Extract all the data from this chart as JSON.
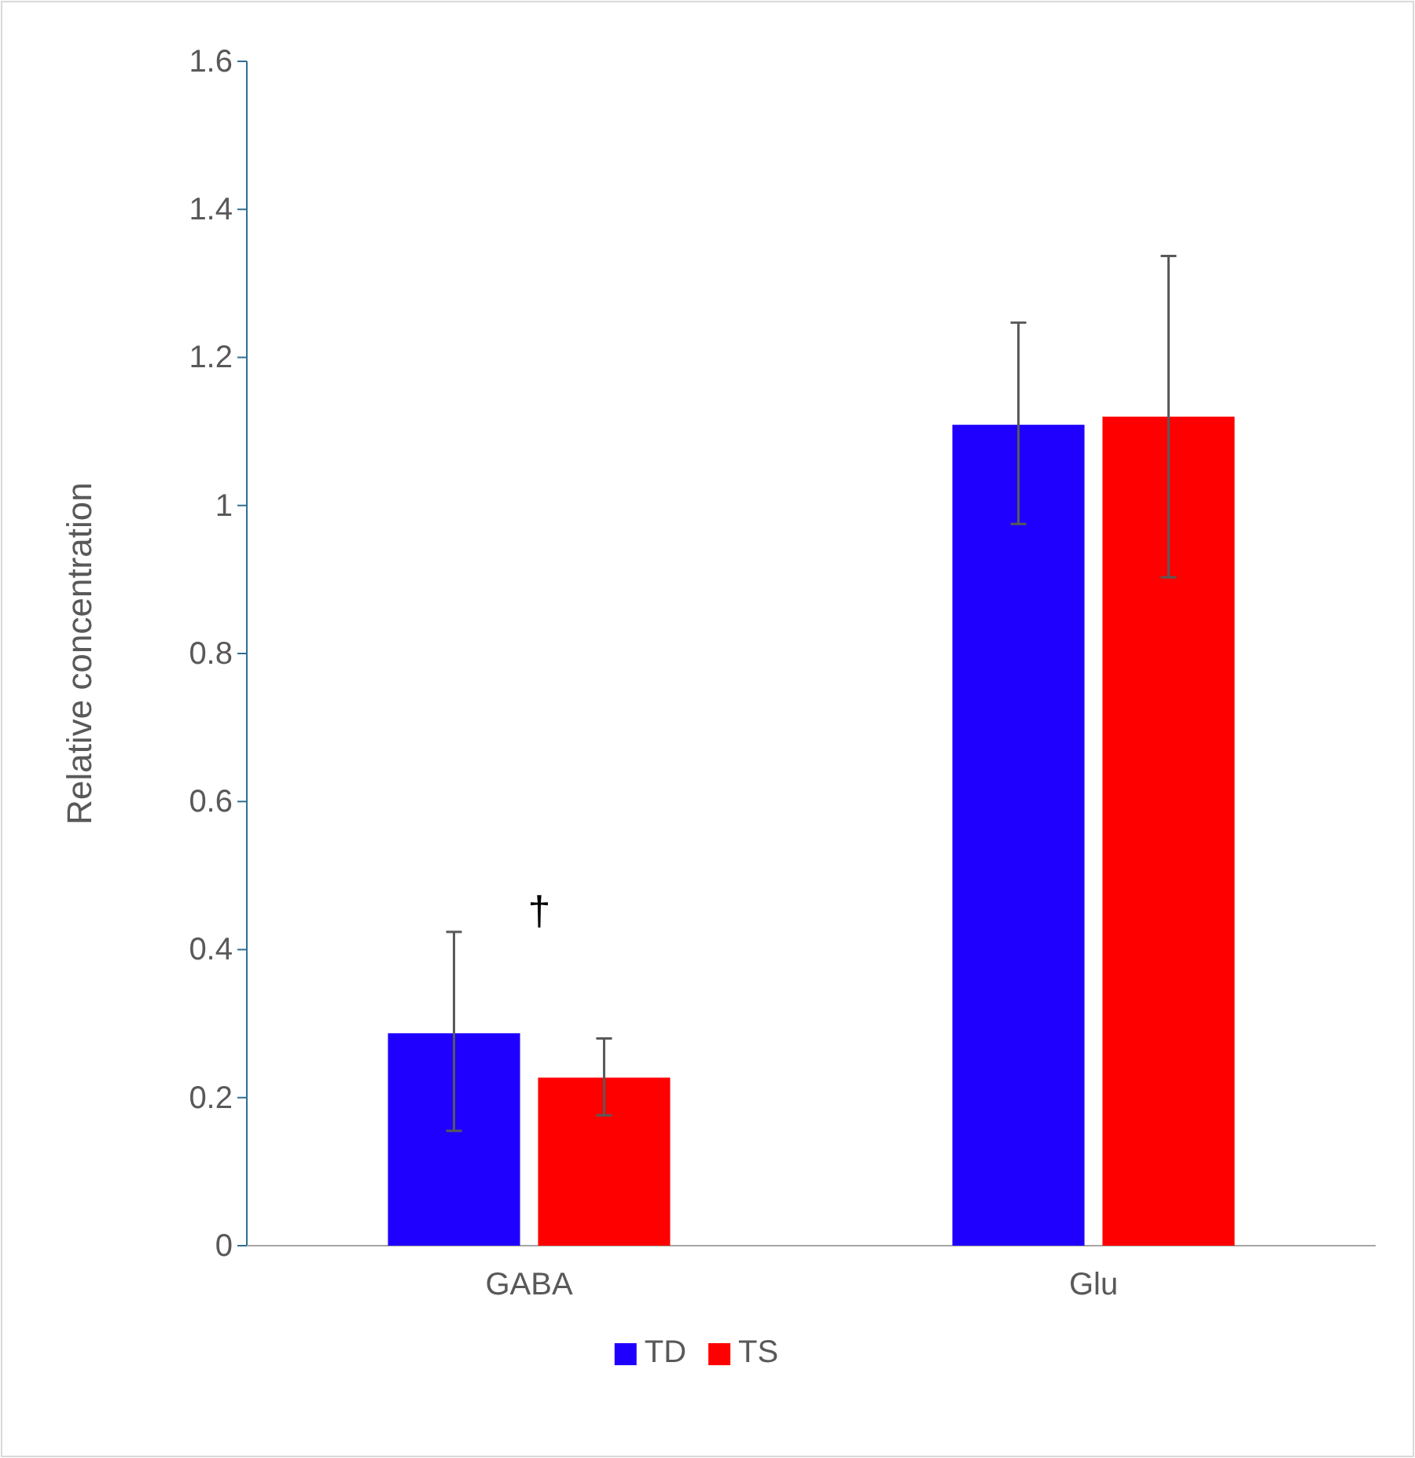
{
  "chart_data": {
    "type": "bar",
    "ylabel": "Relative concentration",
    "categories": [
      "GABA",
      "Glu"
    ],
    "series": [
      {
        "name": "TD",
        "color": "#1f00ff",
        "values": [
          0.287,
          1.109
        ],
        "errors": [
          [
            0.155,
            0.424
          ],
          [
            0.975,
            1.247
          ]
        ]
      },
      {
        "name": "TS",
        "color": "#ff0000",
        "values": [
          0.227,
          1.12
        ],
        "errors": [
          [
            0.176,
            0.28
          ],
          [
            0.903,
            1.337
          ]
        ]
      }
    ],
    "ylim": [
      0,
      1.6
    ],
    "yticks": [
      0,
      0.2,
      0.4,
      0.6,
      0.8,
      1,
      1.2,
      1.4,
      1.6
    ],
    "grid": false,
    "legend": "bottom",
    "annotations": [
      "†"
    ]
  }
}
